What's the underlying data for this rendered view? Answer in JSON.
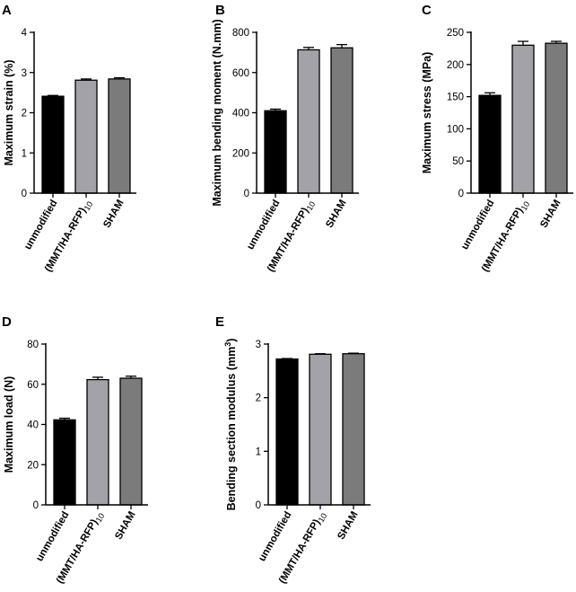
{
  "colors": {
    "bar_1": "#000000",
    "bar_2": "#a2a2a8",
    "bar_3": "#7b7b7b",
    "axis": "#000000"
  },
  "chart_data": [
    {
      "panel_label": "A",
      "type": "bar",
      "categories": [
        "unmodified",
        "(MMT/HA-RFP)",
        "SHAM"
      ],
      "category_subscripts": [
        "",
        "10",
        ""
      ],
      "values": [
        2.41,
        2.81,
        2.84
      ],
      "errors": [
        0.02,
        0.03,
        0.03
      ],
      "ylabel": "Maximum strain (%)",
      "ylim": [
        0,
        4
      ],
      "yticks": [
        0,
        1,
        2,
        3,
        4
      ]
    },
    {
      "panel_label": "B",
      "type": "bar",
      "categories": [
        "unmodified",
        "(MMT/HA-RFP)",
        "SHAM"
      ],
      "category_subscripts": [
        "",
        "10",
        ""
      ],
      "values": [
        410,
        713,
        723
      ],
      "errors": [
        8,
        12,
        16
      ],
      "ylabel": "Maximum bending moment (N.mm)",
      "ylim": [
        0,
        800
      ],
      "yticks": [
        0,
        200,
        400,
        600,
        800
      ]
    },
    {
      "panel_label": "C",
      "type": "bar",
      "categories": [
        "unmodified",
        "(MMT/HA-RFP)",
        "SHAM"
      ],
      "category_subscripts": [
        "",
        "10",
        ""
      ],
      "values": [
        152,
        230,
        233
      ],
      "errors": [
        4,
        6,
        3
      ],
      "ylabel": "Maximum stress (MPa)",
      "ylim": [
        0,
        250
      ],
      "yticks": [
        0,
        50,
        100,
        150,
        200,
        250
      ]
    },
    {
      "panel_label": "D",
      "type": "bar",
      "categories": [
        "unmodified",
        "(MMT/HA-RFP)",
        "SHAM"
      ],
      "category_subscripts": [
        "",
        "10",
        ""
      ],
      "values": [
        42.3,
        62.3,
        63.0
      ],
      "errors": [
        0.8,
        1.2,
        1.0
      ],
      "ylabel": "Maximum load (N)",
      "ylim": [
        0,
        80
      ],
      "yticks": [
        0,
        20,
        40,
        60,
        80
      ]
    },
    {
      "panel_label": "E",
      "type": "bar",
      "categories": [
        "unmodified",
        "(MMT/HA-RFP)",
        "SHAM"
      ],
      "category_subscripts": [
        "",
        "10",
        ""
      ],
      "values": [
        2.72,
        2.81,
        2.82
      ],
      "errors": [
        0.01,
        0.01,
        0.01
      ],
      "ylabel": "Bending section modulus (mm",
      "ylabel_superscript": "3",
      "ylabel_suffix": ")",
      "ylim": [
        0,
        3
      ],
      "yticks": [
        0,
        1,
        2,
        3
      ]
    }
  ]
}
